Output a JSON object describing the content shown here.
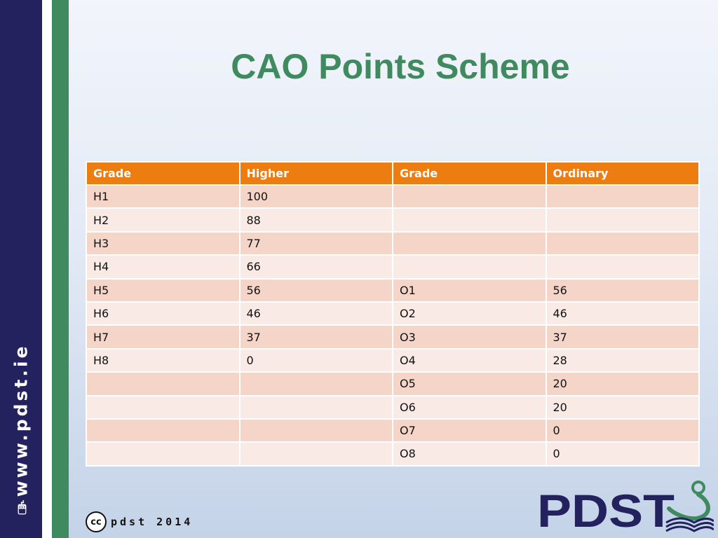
{
  "slide": {
    "title": "CAO Points Scheme",
    "sidebar_text": "www.pdst.ie",
    "footer_text": "pdst 2014",
    "cc_label": "cc",
    "logo_text": "PDST"
  },
  "colors": {
    "navy": "#23225e",
    "green": "#3f8a5f",
    "header_orange": "#ee7d11",
    "row_dark": "#f6d5c9",
    "row_light": "#faeae5"
  },
  "table": {
    "headers": [
      "Grade",
      "Higher",
      "Grade",
      "Ordinary"
    ],
    "rows": [
      [
        "H1",
        "100",
        "",
        ""
      ],
      [
        "H2",
        "88",
        "",
        ""
      ],
      [
        "H3",
        "77",
        "",
        ""
      ],
      [
        "H4",
        "66",
        "",
        ""
      ],
      [
        "H5",
        "56",
        "O1",
        "56"
      ],
      [
        "H6",
        "46",
        "O2",
        "46"
      ],
      [
        "H7",
        "37",
        "O3",
        "37"
      ],
      [
        "H8",
        "0",
        "O4",
        "28"
      ],
      [
        "",
        "",
        "O5",
        "20"
      ],
      [
        "",
        "",
        "O6",
        "20"
      ],
      [
        "",
        "",
        "O7",
        "0"
      ],
      [
        "",
        "",
        "O8",
        "0"
      ]
    ]
  }
}
